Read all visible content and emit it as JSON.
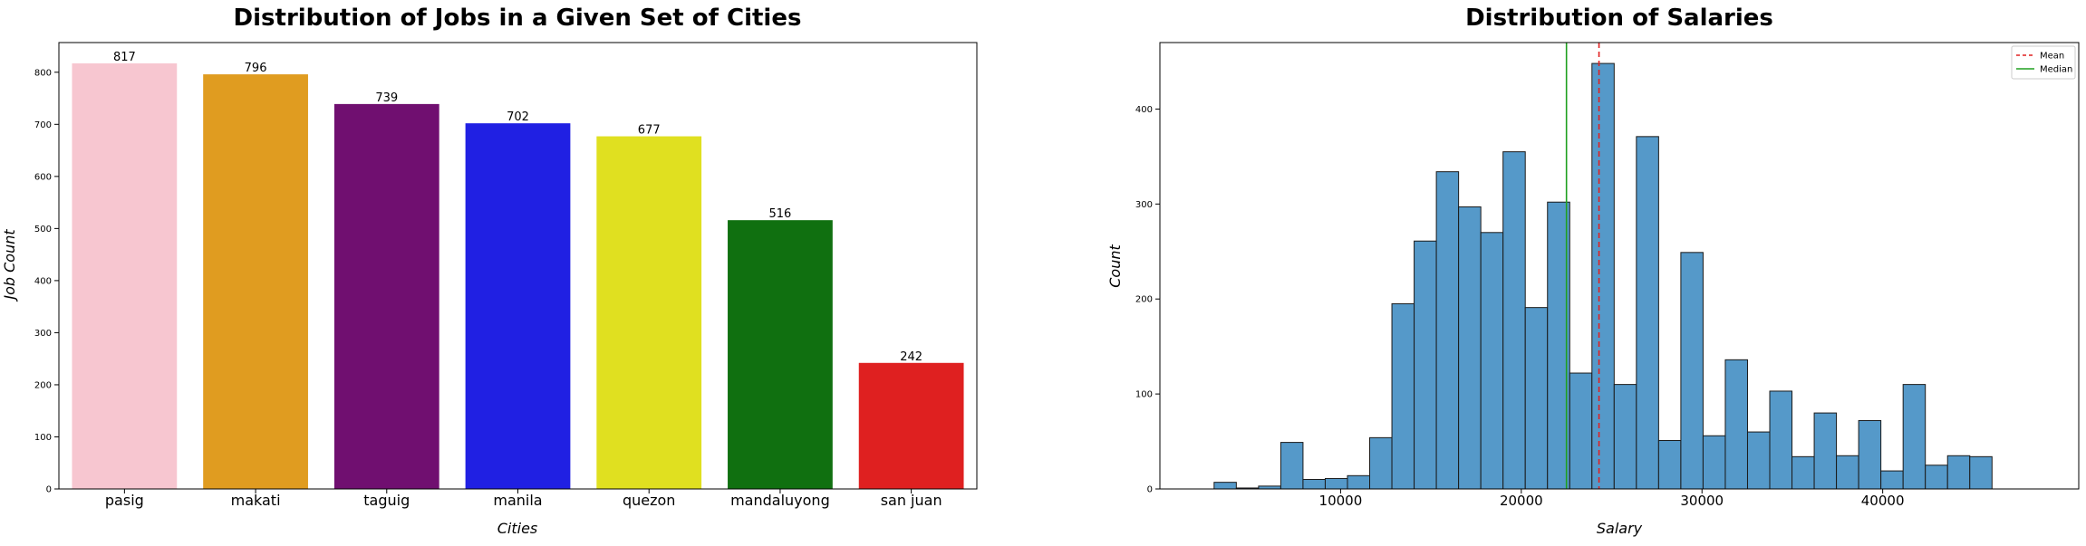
{
  "chart_data": [
    {
      "type": "bar",
      "title": "Distribution of Jobs in a Given Set of Cities",
      "xlabel": "Cities",
      "ylabel": "Job Count",
      "categories": [
        "pasig",
        "makati",
        "taguig",
        "manila",
        "quezon",
        "mandaluyong",
        "san juan"
      ],
      "values": [
        817,
        796,
        739,
        702,
        677,
        516,
        242
      ],
      "colors": [
        "#f7c6d0",
        "#e09c20",
        "#700f70",
        "#2020e3",
        "#e0e020",
        "#107010",
        "#df2020"
      ],
      "ylim": [
        0,
        857
      ],
      "yticks": [
        0,
        100,
        200,
        300,
        400,
        500,
        600,
        700,
        800
      ],
      "grid": false
    },
    {
      "type": "histogram",
      "title": "Distribution of Salaries",
      "xlabel": "Salary",
      "ylabel": "Count",
      "bin_start": 3000,
      "bin_width": 1230,
      "counts": [
        7,
        1,
        3,
        49,
        10,
        11,
        14,
        54,
        195,
        261,
        334,
        297,
        270,
        355,
        191,
        302,
        122,
        448,
        110,
        371,
        51,
        249,
        56,
        136,
        60,
        103,
        34,
        80,
        35,
        72,
        19,
        110,
        25,
        35,
        34
      ],
      "bar_color": "#5599c9",
      "edge_color": "#1a1a1a",
      "xlim": [
        0,
        50850
      ],
      "xticks": [
        10000,
        20000,
        30000,
        40000
      ],
      "ylim": [
        0,
        470
      ],
      "yticks": [
        0,
        100,
        200,
        300,
        400
      ],
      "lines": [
        {
          "name": "Mean",
          "value": 24300,
          "color": "#e02020",
          "style": "dashed"
        },
        {
          "name": "Median",
          "value": 22500,
          "color": "#20a020",
          "style": "solid"
        }
      ],
      "legend": "top-right",
      "grid": false
    }
  ]
}
